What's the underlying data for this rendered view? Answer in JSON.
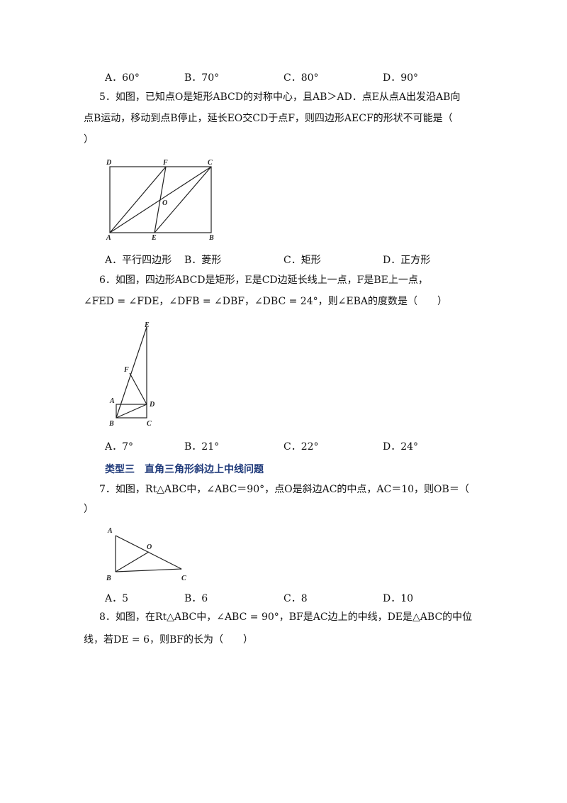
{
  "q4": {
    "options": [
      "A．60°",
      "B．70°",
      "C．80°",
      "D．90°"
    ]
  },
  "q5": {
    "line1": "5．如图，已知点O是矩形ABCD的对称中心，且AB＞AD．点E从点A出发沿AB向",
    "line2": "点B运动，移动到点B停止，延长EO交CD于点F，则四边形AECF的形状不可能是（",
    "line3": "）",
    "labels": [
      "D",
      "F",
      "C",
      "O",
      "A",
      "E",
      "B"
    ],
    "options": [
      "A．平行四边形",
      "B．菱形",
      "C．矩形",
      "D．正方形"
    ]
  },
  "q6": {
    "line1": "6．如图，四边形ABCD是矩形，E是CD边延长线上一点，F是BE上一点，",
    "line2": "∠FED = ∠FDE，∠DFB = ∠DBF，∠DBC = 24°，则∠EBA的度数是（　　）",
    "labels": [
      "E",
      "F",
      "A",
      "D",
      "B",
      "C"
    ],
    "options": [
      "A．7°",
      "B．21°",
      "C．22°",
      "D．24°"
    ]
  },
  "section": {
    "title": "类型三　直角三角形斜边上中线问题"
  },
  "q7": {
    "line1": "7．如图，Rt△ABC中，∠ABC＝90°，点O是斜边AC的中点，AC＝10，则OB＝（",
    "line2": "）",
    "labels": [
      "A",
      "O",
      "B",
      "C"
    ],
    "options": [
      "A．5",
      "B．6",
      "C．8",
      "D．10"
    ]
  },
  "q8": {
    "line1": "8．如图，在Rt△ABC中，∠ABC = 90°，BF是AC边上的中线，DE是△ABC的中位",
    "line2": "线，若DE = 6，则BF的长为（　　）"
  }
}
